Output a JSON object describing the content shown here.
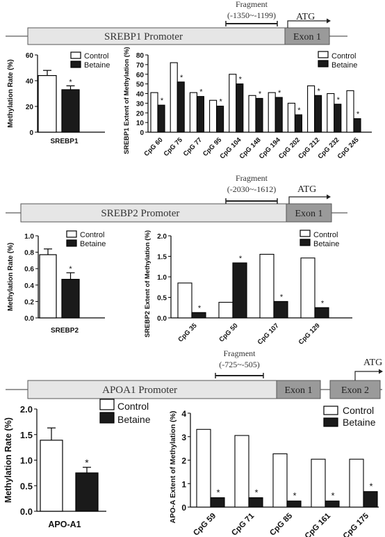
{
  "panels": [
    {
      "promoter": {
        "name": "SREBP1 Promoter",
        "fragment_title": "Fragment",
        "fragment_range": "(-1350~-1199)",
        "exons": [
          "Exon 1"
        ],
        "atg": "ATG"
      },
      "summary": {
        "ylabel": "Methylation Rate (%)",
        "xlabel": "SREBP1",
        "ylim": [
          0,
          60
        ],
        "ticks": [
          "0",
          "20",
          "40",
          "60"
        ],
        "control": 44,
        "control_err": 4,
        "betaine": 33,
        "betaine_err": 3,
        "star": "*"
      },
      "detail": {
        "ylabel": "SREBP1 Extent of Methylation (%)",
        "ylim": [
          0,
          80
        ],
        "ticks": [
          "0",
          "10",
          "20",
          "30",
          "40",
          "50",
          "60",
          "70",
          "80"
        ],
        "categories": [
          "CpG 60",
          "CpG 75",
          "CpG 77",
          "CpG 95",
          "CpG 104",
          "CpG 148",
          "CpG 194",
          "CpG 202",
          "CpG 212",
          "CpG 232",
          "CpG 245"
        ],
        "control": [
          41,
          72,
          41,
          33,
          60,
          38,
          41,
          30,
          48,
          40,
          43
        ],
        "betaine": [
          28,
          52,
          37,
          27,
          50,
          35,
          36,
          18,
          38,
          29,
          14
        ],
        "star": "*"
      }
    },
    {
      "promoter": {
        "name": "SREBP2 Promoter",
        "fragment_title": "Fragment",
        "fragment_range": "(-2030~-1612)",
        "exons": [
          "Exon 1"
        ],
        "atg": "ATG"
      },
      "summary": {
        "ylabel": "Methylation Rate (%)",
        "xlabel": "SREBP2",
        "ylim": [
          0,
          1.0
        ],
        "ticks": [
          "0.0",
          "0.2",
          "0.4",
          "0.6",
          "0.8",
          "1.0"
        ],
        "control": 0.77,
        "control_err": 0.07,
        "betaine": 0.47,
        "betaine_err": 0.08,
        "star": "*"
      },
      "detail": {
        "ylabel": "SREBP2 Extent of Methylation (%)",
        "ylim": [
          0,
          2.0
        ],
        "ticks": [
          "0.0",
          "0.5",
          "1.0",
          "1.5",
          "2.0"
        ],
        "categories": [
          "CpG 35",
          "CpG 50",
          "CpG 107",
          "CpG 129"
        ],
        "control": [
          0.85,
          0.38,
          1.55,
          1.46
        ],
        "betaine": [
          0.13,
          1.34,
          0.4,
          0.25
        ],
        "star": "*"
      }
    },
    {
      "promoter": {
        "name": "APOA1 Promoter",
        "fragment_title": "Fragment",
        "fragment_range": "(-725~-505)",
        "exons": [
          "Exon 1",
          "Exon 2"
        ],
        "atg": "ATG"
      },
      "summary": {
        "ylabel": "Methylation Rate (%)",
        "xlabel": "APO-A1",
        "ylim": [
          0,
          2.0
        ],
        "ticks": [
          "0.0",
          "0.5",
          "1.0",
          "1.5",
          "2.0"
        ],
        "control": 1.39,
        "control_err": 0.24,
        "betaine": 0.75,
        "betaine_err": 0.11,
        "star": "*"
      },
      "detail": {
        "ylabel": "APO-A Extent of Methylation (%)",
        "ylim": [
          0,
          4
        ],
        "ticks": [
          "0",
          "1",
          "2",
          "3",
          "4"
        ],
        "categories": [
          "CpG 59",
          "CpG 71",
          "CpG 85",
          "CpG 161",
          "CpG 175"
        ],
        "control": [
          3.31,
          3.05,
          2.27,
          2.04,
          2.04
        ],
        "betaine": [
          0.4,
          0.4,
          0.26,
          0.26,
          0.66
        ],
        "star": "*"
      }
    }
  ],
  "legend": {
    "control": "Control",
    "betaine": "Betaine"
  },
  "colors": {
    "control": "#ffffff",
    "betaine": "#1a1a1a",
    "promoter": "#e6e6e6",
    "exon": "#9a9a9a"
  },
  "chart_data": [
    {
      "type": "bar",
      "title": "",
      "ylabel": "Methylation Rate (%)",
      "categories": [
        "SREBP1"
      ],
      "series": [
        {
          "name": "Control",
          "values": [
            44
          ]
        },
        {
          "name": "Betaine",
          "values": [
            33
          ]
        }
      ],
      "ylim": [
        0,
        60
      ]
    },
    {
      "type": "bar",
      "title": "",
      "ylabel": "SREBP1 Extent of Methylation (%)",
      "categories": [
        "CpG 60",
        "CpG 75",
        "CpG 77",
        "CpG 95",
        "CpG 104",
        "CpG 148",
        "CpG 194",
        "CpG 202",
        "CpG 212",
        "CpG 232",
        "CpG 245"
      ],
      "series": [
        {
          "name": "Control",
          "values": [
            41,
            72,
            41,
            33,
            60,
            38,
            41,
            30,
            48,
            40,
            43
          ]
        },
        {
          "name": "Betaine",
          "values": [
            28,
            52,
            37,
            27,
            50,
            35,
            36,
            18,
            38,
            29,
            14
          ]
        }
      ],
      "ylim": [
        0,
        80
      ]
    },
    {
      "type": "bar",
      "title": "",
      "ylabel": "Methylation Rate (%)",
      "categories": [
        "SREBP2"
      ],
      "series": [
        {
          "name": "Control",
          "values": [
            0.77
          ]
        },
        {
          "name": "Betaine",
          "values": [
            0.47
          ]
        }
      ],
      "ylim": [
        0,
        1.0
      ]
    },
    {
      "type": "bar",
      "title": "",
      "ylabel": "SREBP2 Extent of Methylation (%)",
      "categories": [
        "CpG 35",
        "CpG 50",
        "CpG 107",
        "CpG 129"
      ],
      "series": [
        {
          "name": "Control",
          "values": [
            0.85,
            0.38,
            1.55,
            1.46
          ]
        },
        {
          "name": "Betaine",
          "values": [
            0.13,
            1.34,
            0.4,
            0.25
          ]
        }
      ],
      "ylim": [
        0,
        2.0
      ]
    },
    {
      "type": "bar",
      "title": "",
      "ylabel": "Methylation Rate (%)",
      "categories": [
        "APO-A1"
      ],
      "series": [
        {
          "name": "Control",
          "values": [
            1.39
          ]
        },
        {
          "name": "Betaine",
          "values": [
            0.75
          ]
        }
      ],
      "ylim": [
        0,
        2.0
      ]
    },
    {
      "type": "bar",
      "title": "",
      "ylabel": "APO-A Extent of Methylation (%)",
      "categories": [
        "CpG 59",
        "CpG 71",
        "CpG 85",
        "CpG 161",
        "CpG 175"
      ],
      "series": [
        {
          "name": "Control",
          "values": [
            3.31,
            3.05,
            2.27,
            2.04,
            2.04
          ]
        },
        {
          "name": "Betaine",
          "values": [
            0.4,
            0.4,
            0.26,
            0.26,
            0.66
          ]
        }
      ],
      "ylim": [
        0,
        4
      ]
    }
  ]
}
